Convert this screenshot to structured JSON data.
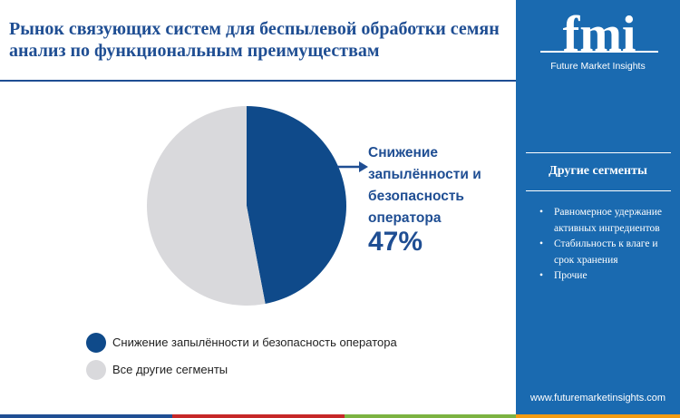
{
  "title": "Рынок связующих систем для беспылевой обработки семян анализ по функциональным преимуществам",
  "brand": {
    "logo_text": "fmi",
    "subtitle": "Future Market Insights",
    "website": "www.futuremarketinsights.com"
  },
  "sidebar": {
    "heading": "Другие сегменты",
    "items": [
      "Равномерное удержание активных ингредиентов",
      "Стабильность к влаге и срок хранения",
      "Прочие"
    ]
  },
  "callout": {
    "label": "Снижение запылённости и безопасность оператора",
    "value": "47%"
  },
  "colors": {
    "primary": "#0f4a8a",
    "other": "#d9d9dc",
    "sidebar": "#1a6ab0",
    "title": "#1f4e93"
  },
  "chart_data": {
    "type": "pie",
    "title": "",
    "slices": [
      {
        "label": "Снижение запылённости и безопасность оператора",
        "value": 47,
        "color": "#0f4a8a"
      },
      {
        "label": "Все другие сегменты",
        "value": 53,
        "color": "#d9d9dc"
      }
    ],
    "legend": [
      "Снижение запылённости и безопасность оператора",
      "Все другие сегменты"
    ],
    "legend_position": "bottom"
  }
}
